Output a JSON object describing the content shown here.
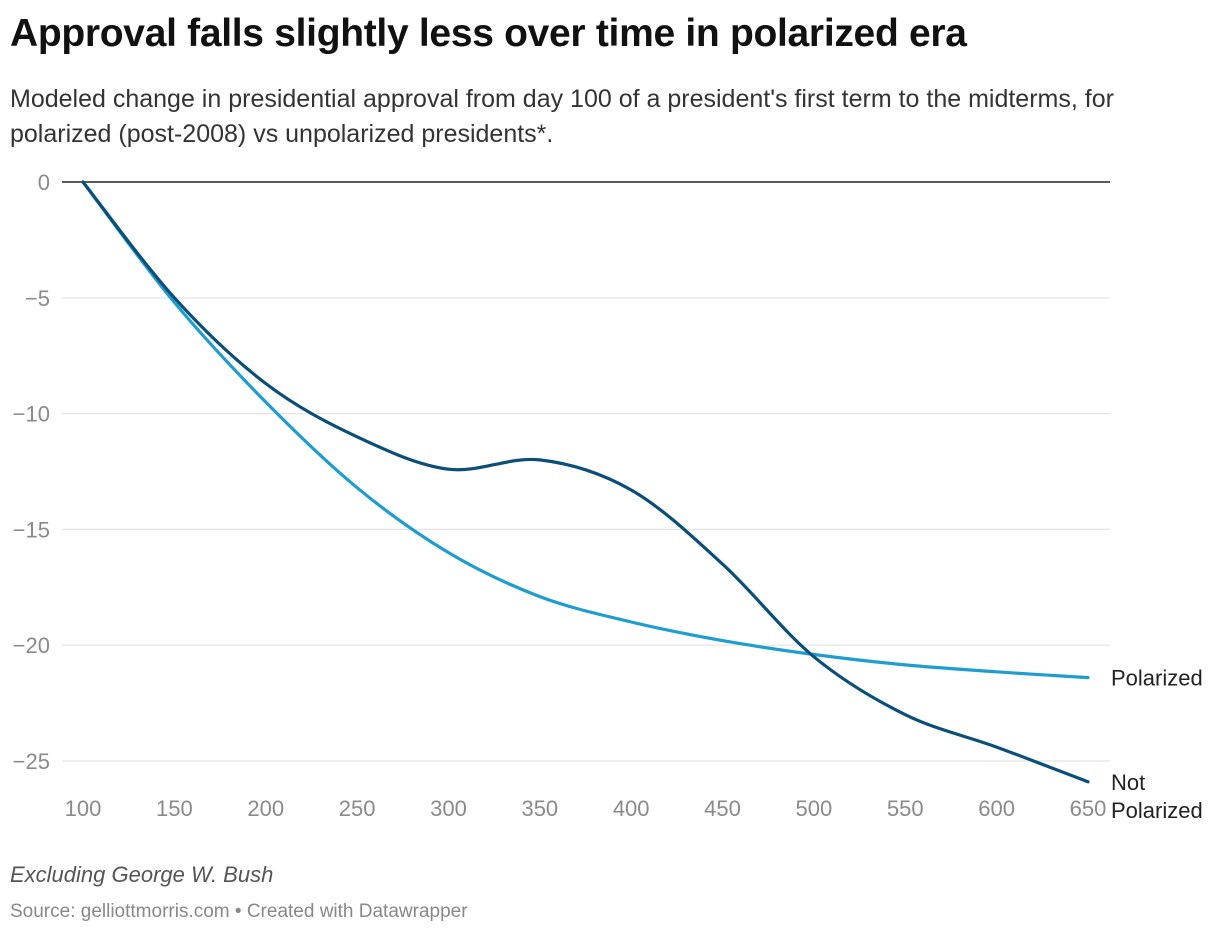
{
  "header": {
    "title": "Approval falls slightly less over time in polarized era",
    "subtitle": "Modeled change in presidential approval from day 100 of a president's first term to the midterms, for polarized (post-2008) vs unpolarized presidents*."
  },
  "footer": {
    "note": "Excluding George W. Bush",
    "source": "Source: gelliottmorris.com • Created with Datawrapper"
  },
  "chart_data": {
    "type": "line",
    "xlim": [
      100,
      650
    ],
    "ylim": [
      -26,
      0
    ],
    "x_ticks": [
      100,
      150,
      200,
      250,
      300,
      350,
      400,
      450,
      500,
      550,
      600,
      650
    ],
    "y_ticks": [
      0,
      -5,
      -10,
      -15,
      -20,
      -25
    ],
    "grid": true,
    "legend": "direct labels at line ends",
    "series": [
      {
        "name": "Polarized",
        "color": "#1f9dcf",
        "points": [
          [
            100,
            0
          ],
          [
            150,
            -5.2
          ],
          [
            200,
            -9.5
          ],
          [
            250,
            -13.2
          ],
          [
            300,
            -16.0
          ],
          [
            350,
            -17.9
          ],
          [
            400,
            -19.0
          ],
          [
            450,
            -19.8
          ],
          [
            500,
            -20.4
          ],
          [
            550,
            -20.85
          ],
          [
            600,
            -21.15
          ],
          [
            650,
            -21.4
          ]
        ]
      },
      {
        "name": "Not Polarized",
        "label_lines": [
          "Not",
          "Polarized"
        ],
        "color": "#0b4f78",
        "points": [
          [
            100,
            0
          ],
          [
            150,
            -5.0
          ],
          [
            200,
            -8.7
          ],
          [
            250,
            -11.0
          ],
          [
            300,
            -12.4
          ],
          [
            350,
            -12.0
          ],
          [
            400,
            -13.3
          ],
          [
            450,
            -16.5
          ],
          [
            500,
            -20.5
          ],
          [
            550,
            -23.0
          ],
          [
            600,
            -24.4
          ],
          [
            650,
            -25.9
          ]
        ]
      }
    ]
  }
}
